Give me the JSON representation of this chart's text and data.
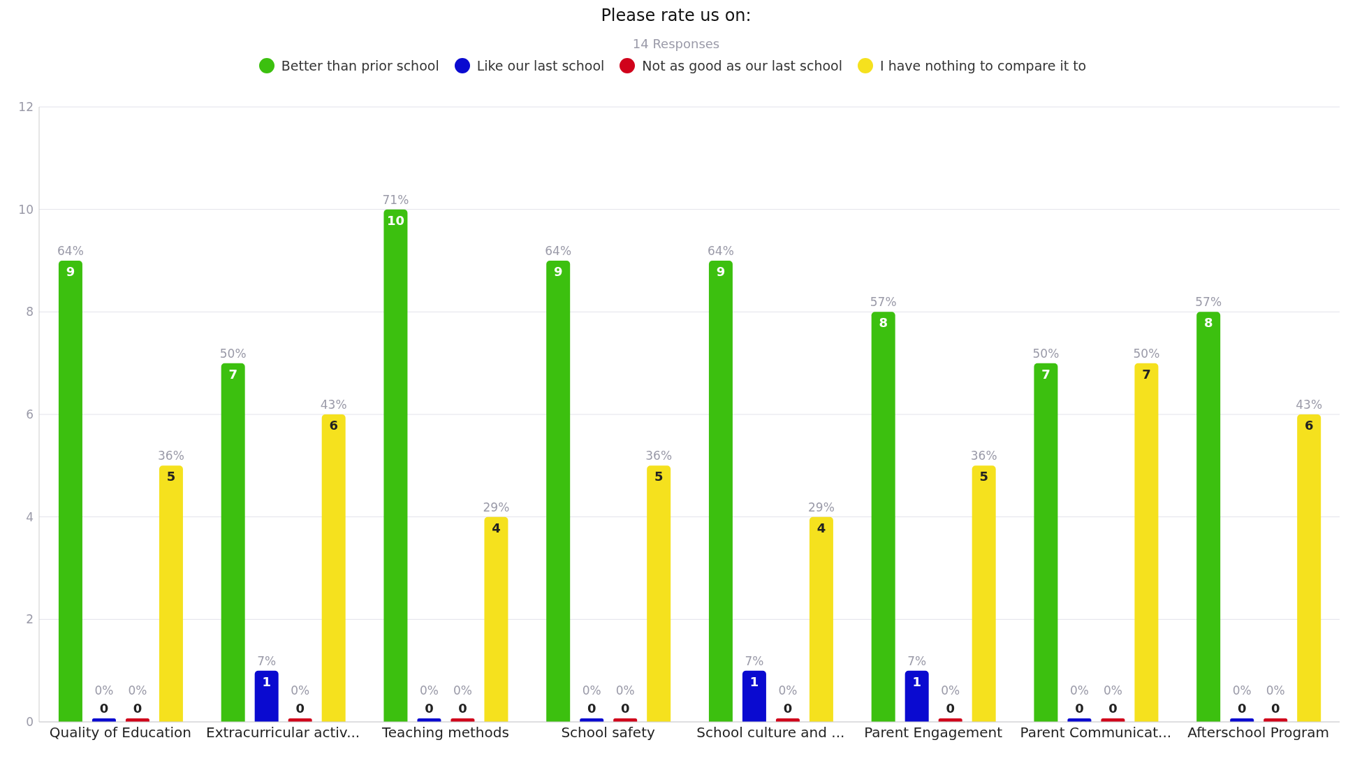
{
  "chart_data": {
    "type": "bar",
    "title": "Please rate us on:",
    "subtitle": "14 Responses",
    "categories": [
      "Quality of Education",
      "Extracurricular activ...",
      "Teaching methods",
      "School safety",
      "School culture and ...",
      "Parent Engagement",
      "Parent Communicat...",
      "Afterschool Program"
    ],
    "series": [
      {
        "name": "Better than prior school",
        "color": "#3cc00f",
        "values": [
          9,
          7,
          10,
          9,
          9,
          8,
          7,
          8
        ]
      },
      {
        "name": "Like our last school",
        "color": "#0a0ad0",
        "values": [
          0,
          1,
          0,
          0,
          1,
          1,
          0,
          0
        ]
      },
      {
        "name": "Not as good as our last school",
        "color": "#d0021b",
        "values": [
          0,
          0,
          0,
          0,
          0,
          0,
          0,
          0
        ]
      },
      {
        "name": "I have nothing to compare it to",
        "color": "#f5e11e",
        "values": [
          5,
          6,
          4,
          5,
          4,
          5,
          7,
          6
        ]
      }
    ],
    "annotations": [
      "64%",
      "50%",
      "71%",
      "64%",
      "64%",
      "57%",
      "50%",
      "57%",
      "0%",
      "7%",
      "0%",
      "0%",
      "7%",
      "7%",
      "0%",
      "0%",
      "0%",
      "0%",
      "0%",
      "0%",
      "0%",
      "0%",
      "0%",
      "0%",
      "36%",
      "43%",
      "29%",
      "36%",
      "29%",
      "36%",
      "50%",
      "43%"
    ],
    "ylim": [
      0,
      12
    ],
    "yticks": [
      0,
      2,
      4,
      6,
      8,
      10,
      12
    ],
    "grid": "y",
    "legend": "top",
    "data_labels": true
  }
}
